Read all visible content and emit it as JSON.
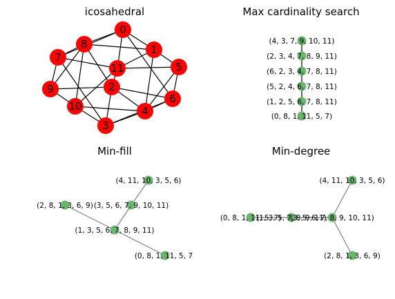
{
  "panels": [
    {
      "title": "icosahedral",
      "nodes": [
        {
          "label": "0"
        },
        {
          "label": "1"
        },
        {
          "label": "2"
        },
        {
          "label": "3"
        },
        {
          "label": "4"
        },
        {
          "label": "5"
        },
        {
          "label": "6"
        },
        {
          "label": "7"
        },
        {
          "label": "8"
        },
        {
          "label": "9"
        },
        {
          "label": "10"
        },
        {
          "label": "11"
        }
      ],
      "edges": [
        [
          0,
          8
        ],
        [
          0,
          1
        ],
        [
          0,
          7
        ],
        [
          0,
          11
        ],
        [
          0,
          6
        ],
        [
          1,
          8
        ],
        [
          1,
          5
        ],
        [
          1,
          11
        ],
        [
          1,
          4
        ],
        [
          2,
          11
        ],
        [
          2,
          9
        ],
        [
          2,
          3
        ],
        [
          2,
          8
        ],
        [
          2,
          4
        ],
        [
          2,
          6
        ],
        [
          3,
          10
        ],
        [
          3,
          4
        ],
        [
          3,
          7
        ],
        [
          3,
          6
        ],
        [
          4,
          5
        ],
        [
          4,
          6
        ],
        [
          4,
          10
        ],
        [
          5,
          6
        ],
        [
          5,
          11
        ],
        [
          7,
          8
        ],
        [
          7,
          9
        ],
        [
          7,
          11
        ],
        [
          8,
          9
        ],
        [
          9,
          10
        ],
        [
          10,
          11
        ],
        [
          10,
          8
        ]
      ]
    },
    {
      "title": "Max cardinality search",
      "nodes": [
        {
          "label": "(4, 3, 7, 9, 10, 11)"
        },
        {
          "label": "(2, 3, 4, 7, 8, 9, 11)"
        },
        {
          "label": "(6, 2, 3, 4, 7, 8, 11)"
        },
        {
          "label": "(5, 2, 4, 6, 7, 8, 11)"
        },
        {
          "label": "(1, 2, 5, 6, 7, 8, 11)"
        },
        {
          "label": "(0, 8, 1, 11, 5, 7)"
        }
      ],
      "edges": [
        [
          0,
          1
        ],
        [
          1,
          2
        ],
        [
          2,
          3
        ],
        [
          3,
          4
        ],
        [
          4,
          5
        ]
      ]
    },
    {
      "title": "Min-fill",
      "nodes": [
        {
          "label": "(4, 11, 10, 3, 5, 6)"
        },
        {
          "label": "(2, 8, 1, 3, 6, 9)"
        },
        {
          "label": "(3, 5, 6, 7, 9, 10, 11)"
        },
        {
          "label": "(1, 3, 5, 6, 7, 8, 9, 11)"
        },
        {
          "label": "(0, 8, 1, 11, 5, 7)"
        }
      ],
      "edges": [
        [
          0,
          2
        ],
        [
          2,
          3
        ],
        [
          1,
          3
        ],
        [
          3,
          4
        ]
      ]
    },
    {
      "title": "Min-degree",
      "nodes": [
        {
          "label": "(4, 11, 10, 3, 5, 6)"
        },
        {
          "label": "(0, 8, 1, 11, 5, 7)"
        },
        {
          "label": "(1, 3, 5, 7, 8, 9, 11)"
        },
        {
          "label": "(3, 5, 6, 7, 8, 9, 10, 11)"
        },
        {
          "label": "(2, 8, 1, 3, 6, 9)"
        }
      ],
      "edges": [
        [
          1,
          2
        ],
        [
          2,
          3
        ],
        [
          0,
          3
        ],
        [
          3,
          4
        ]
      ]
    }
  ]
}
